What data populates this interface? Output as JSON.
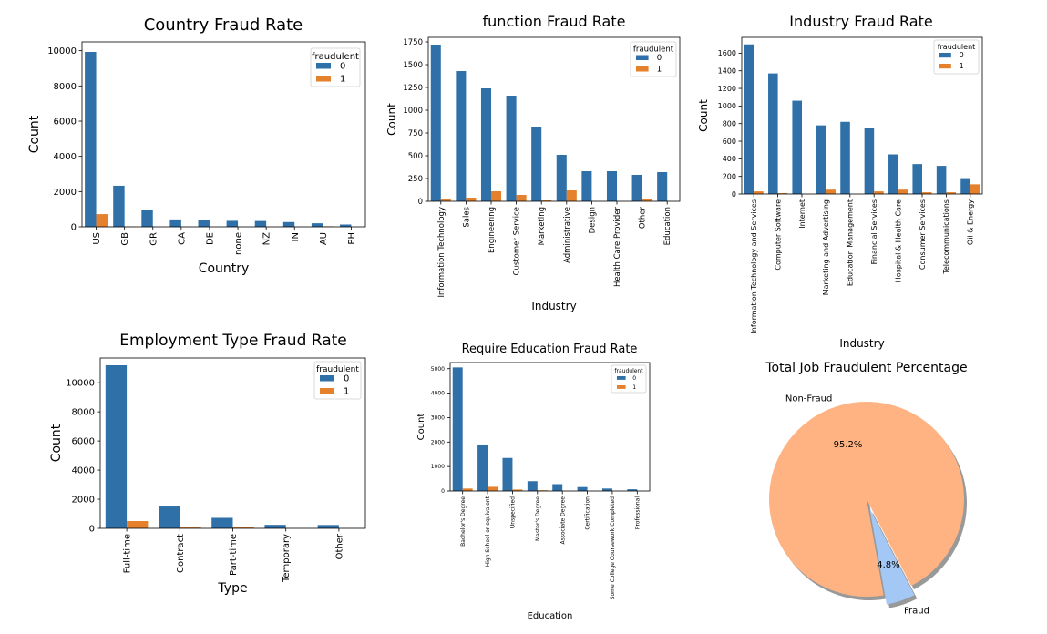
{
  "charts": [
    {
      "type": "bar",
      "title": "Country Fraud Rate",
      "xlabel": "Country",
      "ylabel": "Count",
      "categories": [
        "US",
        "GB",
        "GR",
        "CA",
        "DE",
        "none",
        "NZ",
        "IN",
        "AU",
        "PH"
      ],
      "series": [
        {
          "name": "0",
          "color": "#2f70a8",
          "values": [
            9930,
            2330,
            940,
            420,
            380,
            340,
            330,
            270,
            200,
            130
          ]
        },
        {
          "name": "1",
          "color": "#e5812d",
          "values": [
            720,
            20,
            0,
            10,
            0,
            0,
            0,
            10,
            30,
            0
          ]
        }
      ],
      "ylim": [
        0,
        10500
      ],
      "yticks": [
        0,
        2000,
        4000,
        6000,
        8000,
        10000
      ],
      "legend": {
        "title": "fraudulent",
        "position": "top-right"
      }
    },
    {
      "type": "bar",
      "title": "function Fraud Rate",
      "xlabel": "Industry",
      "ylabel": "Count",
      "categories": [
        "Information Technology",
        "Sales",
        "Engineering",
        "Customer Service",
        "Marketing",
        "Administrative",
        "Design",
        "Health Care Provider",
        "Other",
        "Education"
      ],
      "series": [
        {
          "name": "0",
          "color": "#2f70a8",
          "values": [
            1720,
            1430,
            1240,
            1160,
            820,
            510,
            330,
            330,
            290,
            320
          ]
        },
        {
          "name": "1",
          "color": "#e5812d",
          "values": [
            30,
            40,
            110,
            70,
            10,
            120,
            0,
            0,
            30,
            0
          ]
        }
      ],
      "ylim": [
        0,
        1800
      ],
      "yticks": [
        0,
        250,
        500,
        750,
        1000,
        1250,
        1500,
        1750
      ],
      "legend": {
        "title": "fraudulent",
        "position": "top-right"
      }
    },
    {
      "type": "bar",
      "title": "Industry Fraud Rate",
      "xlabel": "Industry",
      "ylabel": "Count",
      "categories": [
        "Information Technology and Services",
        "Computer Software",
        "Internet",
        "Marketing and Advertising",
        "Education Management",
        "Financial Services",
        "Hospital & Health Care",
        "Consumer Services",
        "Telecommunications",
        "Oil & Energy"
      ],
      "series": [
        {
          "name": "0",
          "color": "#2f70a8",
          "values": [
            1700,
            1370,
            1060,
            780,
            820,
            750,
            450,
            340,
            320,
            180
          ]
        },
        {
          "name": "1",
          "color": "#e5812d",
          "values": [
            30,
            10,
            0,
            50,
            0,
            30,
            50,
            20,
            20,
            110
          ]
        }
      ],
      "ylim": [
        0,
        1780
      ],
      "yticks": [
        0,
        200,
        400,
        600,
        800,
        1000,
        1200,
        1400,
        1600
      ],
      "legend": {
        "title": "fraudulent",
        "position": "top-right"
      }
    },
    {
      "type": "bar",
      "title": "Employment Type Fraud Rate",
      "xlabel": "Type",
      "ylabel": "Count",
      "categories": [
        "Full-time",
        "Contract",
        "Part-time",
        "Temporary",
        "Other"
      ],
      "series": [
        {
          "name": "0",
          "color": "#2f70a8",
          "values": [
            11200,
            1500,
            720,
            240,
            230
          ]
        },
        {
          "name": "1",
          "color": "#e5812d",
          "values": [
            500,
            60,
            80,
            0,
            0
          ]
        }
      ],
      "ylim": [
        0,
        11700
      ],
      "yticks": [
        0,
        2000,
        4000,
        6000,
        8000,
        10000
      ],
      "legend": {
        "title": "fraudulent",
        "position": "top-right"
      }
    },
    {
      "type": "bar",
      "title": "Require Education Fraud Rate",
      "xlabel": "Education",
      "ylabel": "Count",
      "categories": [
        "Bachelor's Degree",
        "High School or equivalent",
        "Unspecified",
        "Master's Degree",
        "Associate Degree",
        "Certification",
        "Some College Coursework Completed",
        "Professional"
      ],
      "series": [
        {
          "name": "0",
          "color": "#2f70a8",
          "values": [
            5050,
            1900,
            1350,
            400,
            280,
            160,
            100,
            70
          ]
        },
        {
          "name": "1",
          "color": "#e5812d",
          "values": [
            100,
            170,
            60,
            30,
            0,
            0,
            0,
            0
          ]
        }
      ],
      "ylim": [
        0,
        5250
      ],
      "yticks": [
        0,
        1000,
        2000,
        3000,
        4000,
        5000
      ],
      "legend": {
        "title": "fraudulent",
        "position": "top-right"
      }
    },
    {
      "type": "pie",
      "title": "Total Job Fraudulent Percentage",
      "slices": [
        {
          "label": "Fraud",
          "value": 4.8,
          "pct": "4.8%",
          "color": "#a3c8f5",
          "explode": true
        },
        {
          "label": "Non-Fraud",
          "value": 95.2,
          "pct": "95.2%",
          "color": "#ffb382",
          "explode": false
        }
      ],
      "shadow": true
    }
  ]
}
